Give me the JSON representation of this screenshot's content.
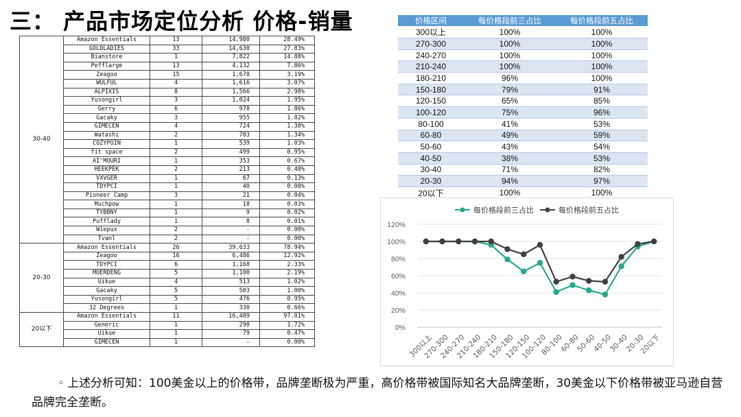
{
  "title": "三： 产品市场定位分析 价格-销量",
  "brand_table": {
    "groups": [
      {
        "segment": "30-40",
        "rows": [
          {
            "brand": "Amazon Essentials",
            "count": "13",
            "sales": "14,980",
            "share": "28.49%"
          },
          {
            "brand": "GOLDLADIES",
            "count": "33",
            "sales": "14,630",
            "share": "27.83%"
          },
          {
            "brand": "Bianstore",
            "count": "1",
            "sales": "7,822",
            "share": "14.88%"
          },
          {
            "brand": "Pefflarge",
            "count": "13",
            "sales": "4,132",
            "share": "7.86%"
          },
          {
            "brand": "Zeagoo",
            "count": "15",
            "sales": "1,678",
            "share": "3.19%"
          },
          {
            "brand": "WULFUL",
            "count": "4",
            "sales": "1,616",
            "share": "3.07%"
          },
          {
            "brand": "ALPIXIS",
            "count": "8",
            "sales": "1,566",
            "share": "2.98%"
          },
          {
            "brand": "Yusongirl",
            "count": "3",
            "sales": "1,024",
            "share": "1.95%"
          },
          {
            "brand": "Gerry",
            "count": "6",
            "sales": "978",
            "share": "1.86%"
          },
          {
            "brand": "Gacaky",
            "count": "3",
            "sales": "955",
            "share": "1.82%"
          },
          {
            "brand": "GIMECEN",
            "count": "4",
            "sales": "724",
            "share": "1.38%"
          },
          {
            "brand": "Watashi",
            "count": "2",
            "sales": "703",
            "share": "1.34%"
          },
          {
            "brand": "COZYPOIN",
            "count": "1",
            "sales": "539",
            "share": "1.03%"
          },
          {
            "brand": "fit space",
            "count": "2",
            "sales": "499",
            "share": "0.95%"
          },
          {
            "brand": "AI'MOURI",
            "count": "1",
            "sales": "353",
            "share": "0.67%"
          },
          {
            "brand": "HEEKPEK",
            "count": "2",
            "sales": "213",
            "share": "0.40%"
          },
          {
            "brand": "VXVGER",
            "count": "1",
            "sales": "67",
            "share": "0.13%"
          },
          {
            "brand": "TDYPCI",
            "count": "1",
            "sales": "40",
            "share": "0.08%"
          },
          {
            "brand": "Pioneer Camp",
            "count": "3",
            "sales": "21",
            "share": "0.04%"
          },
          {
            "brand": "Muchpow",
            "count": "1",
            "sales": "18",
            "share": "0.03%"
          },
          {
            "brand": "TYBBNY",
            "count": "1",
            "sales": "9",
            "share": "0.02%"
          },
          {
            "brand": "Pufflady",
            "count": "1",
            "sales": "8",
            "share": "0.01%"
          },
          {
            "brand": "Wiepux",
            "count": "2",
            "sales": "-",
            "share": "0.00%"
          },
          {
            "brand": "Tvanl",
            "count": "2",
            "sales": "-",
            "share": "0.00%"
          }
        ]
      },
      {
        "segment": "20-30",
        "rows": [
          {
            "brand": "Amazon Essentials",
            "count": "26",
            "sales": "39,633",
            "share": "78.94%"
          },
          {
            "brand": "Zeagoo",
            "count": "16",
            "sales": "6,486",
            "share": "12.92%"
          },
          {
            "brand": "TDYPCI",
            "count": "6",
            "sales": "1,168",
            "share": "2.33%"
          },
          {
            "brand": "MOERDENG",
            "count": "5",
            "sales": "1,100",
            "share": "2.19%"
          },
          {
            "brand": "Uikue",
            "count": "4",
            "sales": "513",
            "share": "1.02%"
          },
          {
            "brand": "Gacaky",
            "count": "5",
            "sales": "503",
            "share": "1.00%"
          },
          {
            "brand": "Yusongirl",
            "count": "5",
            "sales": "476",
            "share": "0.95%"
          },
          {
            "brand": "32 Degrees",
            "count": "1",
            "sales": "330",
            "share": "0.66%"
          }
        ]
      },
      {
        "segment": "20以下",
        "rows": [
          {
            "brand": "Amazon Essentials",
            "count": "11",
            "sales": "16,489",
            "share": "97.81%"
          },
          {
            "brand": "Generic",
            "count": "1",
            "sales": "290",
            "share": "1.72%"
          },
          {
            "brand": "Uikue",
            "count": "1",
            "sales": "79",
            "share": "0.47%"
          },
          {
            "brand": "GIMECEN",
            "count": "1",
            "sales": "-",
            "share": "0.00%"
          }
        ]
      }
    ]
  },
  "share_table": {
    "headers": [
      "价格区间",
      "每价格段前三占比",
      "每价格段前五占比"
    ],
    "rows": [
      [
        "300以上",
        "100%",
        "100%"
      ],
      [
        "270-300",
        "100%",
        "100%"
      ],
      [
        "240-270",
        "100%",
        "100%"
      ],
      [
        "210-240",
        "100%",
        "100%"
      ],
      [
        "180-210",
        "96%",
        "100%"
      ],
      [
        "150-180",
        "79%",
        "91%"
      ],
      [
        "120-150",
        "65%",
        "85%"
      ],
      [
        "100-120",
        "75%",
        "96%"
      ],
      [
        "80-100",
        "41%",
        "53%"
      ],
      [
        "60-80",
        "49%",
        "59%"
      ],
      [
        "50-60",
        "43%",
        "54%"
      ],
      [
        "40-50",
        "38%",
        "53%"
      ],
      [
        "30-40",
        "71%",
        "82%"
      ],
      [
        "20-30",
        "94%",
        "97%"
      ],
      [
        "20以下",
        "100%",
        "100%"
      ]
    ]
  },
  "chart_data": {
    "type": "line",
    "categories": [
      "300以上",
      "270-300",
      "240-270",
      "210-240",
      "180-210",
      "150-180",
      "120-150",
      "100-120",
      "80-100",
      "60-80",
      "50-60",
      "40-50",
      "30-40",
      "20-30",
      "20以下"
    ],
    "series": [
      {
        "name": "每价格段前三占比",
        "color": "#26a88e",
        "values": [
          100,
          100,
          100,
          100,
          96,
          79,
          65,
          75,
          41,
          49,
          43,
          38,
          71,
          94,
          100
        ]
      },
      {
        "name": "每价格段前五占比",
        "color": "#404040",
        "values": [
          100,
          100,
          100,
          100,
          100,
          91,
          85,
          96,
          53,
          59,
          54,
          53,
          82,
          97,
          100
        ]
      }
    ],
    "yticks": [
      "0%",
      "20%",
      "40%",
      "60%",
      "80%",
      "100%",
      "120%"
    ],
    "ylim": [
      0,
      120
    ],
    "legend": "top-center",
    "grid": true
  },
  "note": {
    "bullet": "◦",
    "text": "上述分析可知：100美金以上的价格带，品牌垄断极为严重，高价格带被国际知名大品牌垄断，30美金以下价格带被亚马逊自营品牌完全垄断。"
  }
}
